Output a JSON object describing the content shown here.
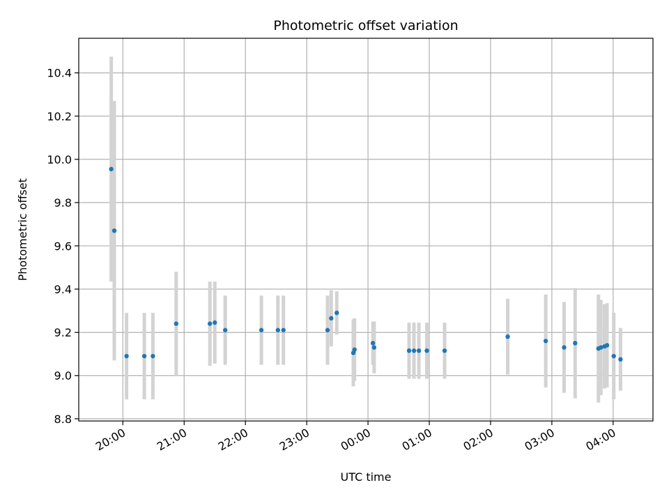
{
  "chart_data": {
    "type": "scatter",
    "title": "Photometric offset variation",
    "xlabel": "UTC time",
    "ylabel": "Photometric offset",
    "x_unit": "UTC time (hours; values past 24 are after midnight)",
    "xlim": [
      19.28,
      28.65
    ],
    "ylim": [
      8.79,
      10.56
    ],
    "x_ticks": [
      20,
      21,
      22,
      23,
      24,
      25,
      26,
      27,
      28
    ],
    "x_tick_labels": [
      "20:00",
      "21:00",
      "22:00",
      "23:00",
      "00:00",
      "01:00",
      "02:00",
      "03:00",
      "04:00"
    ],
    "y_ticks": [
      8.8,
      9.0,
      9.2,
      9.4,
      9.6,
      9.8,
      10.0,
      10.2,
      10.4
    ],
    "y_tick_labels": [
      "8.8",
      "9.0",
      "9.2",
      "9.4",
      "9.6",
      "9.8",
      "10.0",
      "10.2",
      "10.4"
    ],
    "grid": true,
    "colors": {
      "marker": "#1f77b4",
      "errorbar": "#d3d3d3",
      "grid": "#b0b0b0"
    },
    "points": [
      {
        "x": 19.81,
        "y": 9.955,
        "err": 0.52
      },
      {
        "x": 19.86,
        "y": 9.67,
        "err": 0.6
      },
      {
        "x": 20.06,
        "y": 9.09,
        "err": 0.2
      },
      {
        "x": 20.35,
        "y": 9.09,
        "err": 0.2
      },
      {
        "x": 20.49,
        "y": 9.09,
        "err": 0.2
      },
      {
        "x": 20.87,
        "y": 9.24,
        "err": 0.24
      },
      {
        "x": 21.42,
        "y": 9.24,
        "err": 0.195
      },
      {
        "x": 21.5,
        "y": 9.245,
        "err": 0.19
      },
      {
        "x": 21.67,
        "y": 9.21,
        "err": 0.16
      },
      {
        "x": 22.26,
        "y": 9.21,
        "err": 0.16
      },
      {
        "x": 22.53,
        "y": 9.21,
        "err": 0.16
      },
      {
        "x": 22.62,
        "y": 9.21,
        "err": 0.16
      },
      {
        "x": 23.34,
        "y": 9.21,
        "err": 0.16
      },
      {
        "x": 23.4,
        "y": 9.265,
        "err": 0.13
      },
      {
        "x": 23.49,
        "y": 9.29,
        "err": 0.1
      },
      {
        "x": 23.76,
        "y": 9.105,
        "err": 0.155
      },
      {
        "x": 23.78,
        "y": 9.12,
        "err": 0.145
      },
      {
        "x": 24.08,
        "y": 9.15,
        "err": 0.1
      },
      {
        "x": 24.1,
        "y": 9.13,
        "err": 0.12
      },
      {
        "x": 24.67,
        "y": 9.115,
        "err": 0.13
      },
      {
        "x": 24.75,
        "y": 9.115,
        "err": 0.13
      },
      {
        "x": 24.83,
        "y": 9.115,
        "err": 0.13
      },
      {
        "x": 24.96,
        "y": 9.115,
        "err": 0.13
      },
      {
        "x": 25.25,
        "y": 9.115,
        "err": 0.13
      },
      {
        "x": 26.28,
        "y": 9.18,
        "err": 0.175
      },
      {
        "x": 26.9,
        "y": 9.16,
        "err": 0.215
      },
      {
        "x": 27.2,
        "y": 9.13,
        "err": 0.21
      },
      {
        "x": 27.38,
        "y": 9.15,
        "err": 0.255
      },
      {
        "x": 27.76,
        "y": 9.125,
        "err": 0.25
      },
      {
        "x": 27.8,
        "y": 9.13,
        "err": 0.22
      },
      {
        "x": 27.86,
        "y": 9.135,
        "err": 0.195
      },
      {
        "x": 27.9,
        "y": 9.14,
        "err": 0.195
      },
      {
        "x": 28.01,
        "y": 9.09,
        "err": 0.2
      },
      {
        "x": 28.12,
        "y": 9.075,
        "err": 0.145
      }
    ]
  }
}
